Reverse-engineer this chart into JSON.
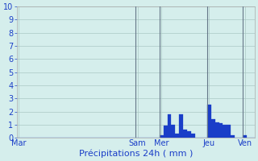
{
  "xlabel": "Précipitations 24h ( mm )",
  "background_color": "#d5eeec",
  "bar_color": "#1a3ec8",
  "bar_edge_color": "#1a3ec8",
  "grid_color": "#aac8c4",
  "ylim": [
    0,
    10
  ],
  "yticks": [
    0,
    1,
    2,
    3,
    4,
    5,
    6,
    7,
    8,
    9,
    10
  ],
  "day_labels": [
    "Mar",
    "Sam",
    "Mer",
    "Jeu",
    "Ven"
  ],
  "n_bars": 60,
  "day_tick_positions": [
    0,
    30,
    36,
    48,
    57
  ],
  "bar_values": [
    0,
    0,
    0,
    0,
    0,
    0,
    0,
    0,
    0,
    0,
    0,
    0,
    0,
    0,
    0,
    0,
    0,
    0,
    0,
    0,
    0,
    0,
    0,
    0,
    0,
    0,
    0,
    0,
    0,
    0,
    0,
    0,
    0,
    0,
    0,
    0,
    0.2,
    0.9,
    1.8,
    1.0,
    0.3,
    1.8,
    0.6,
    0.5,
    0.3,
    0,
    0,
    0,
    2.5,
    1.4,
    1.2,
    1.1,
    1.0,
    1.0,
    0.2,
    0,
    0,
    0.2,
    0,
    0
  ],
  "vline_positions": [
    30,
    36,
    48,
    57
  ],
  "vline_color": "#667788",
  "tick_color": "#1a3ec8",
  "spine_color": "#aaaaaa",
  "xlabel_color": "#1a3ec8",
  "xlabel_fontsize": 8,
  "ytick_fontsize": 7,
  "xtick_fontsize": 7
}
